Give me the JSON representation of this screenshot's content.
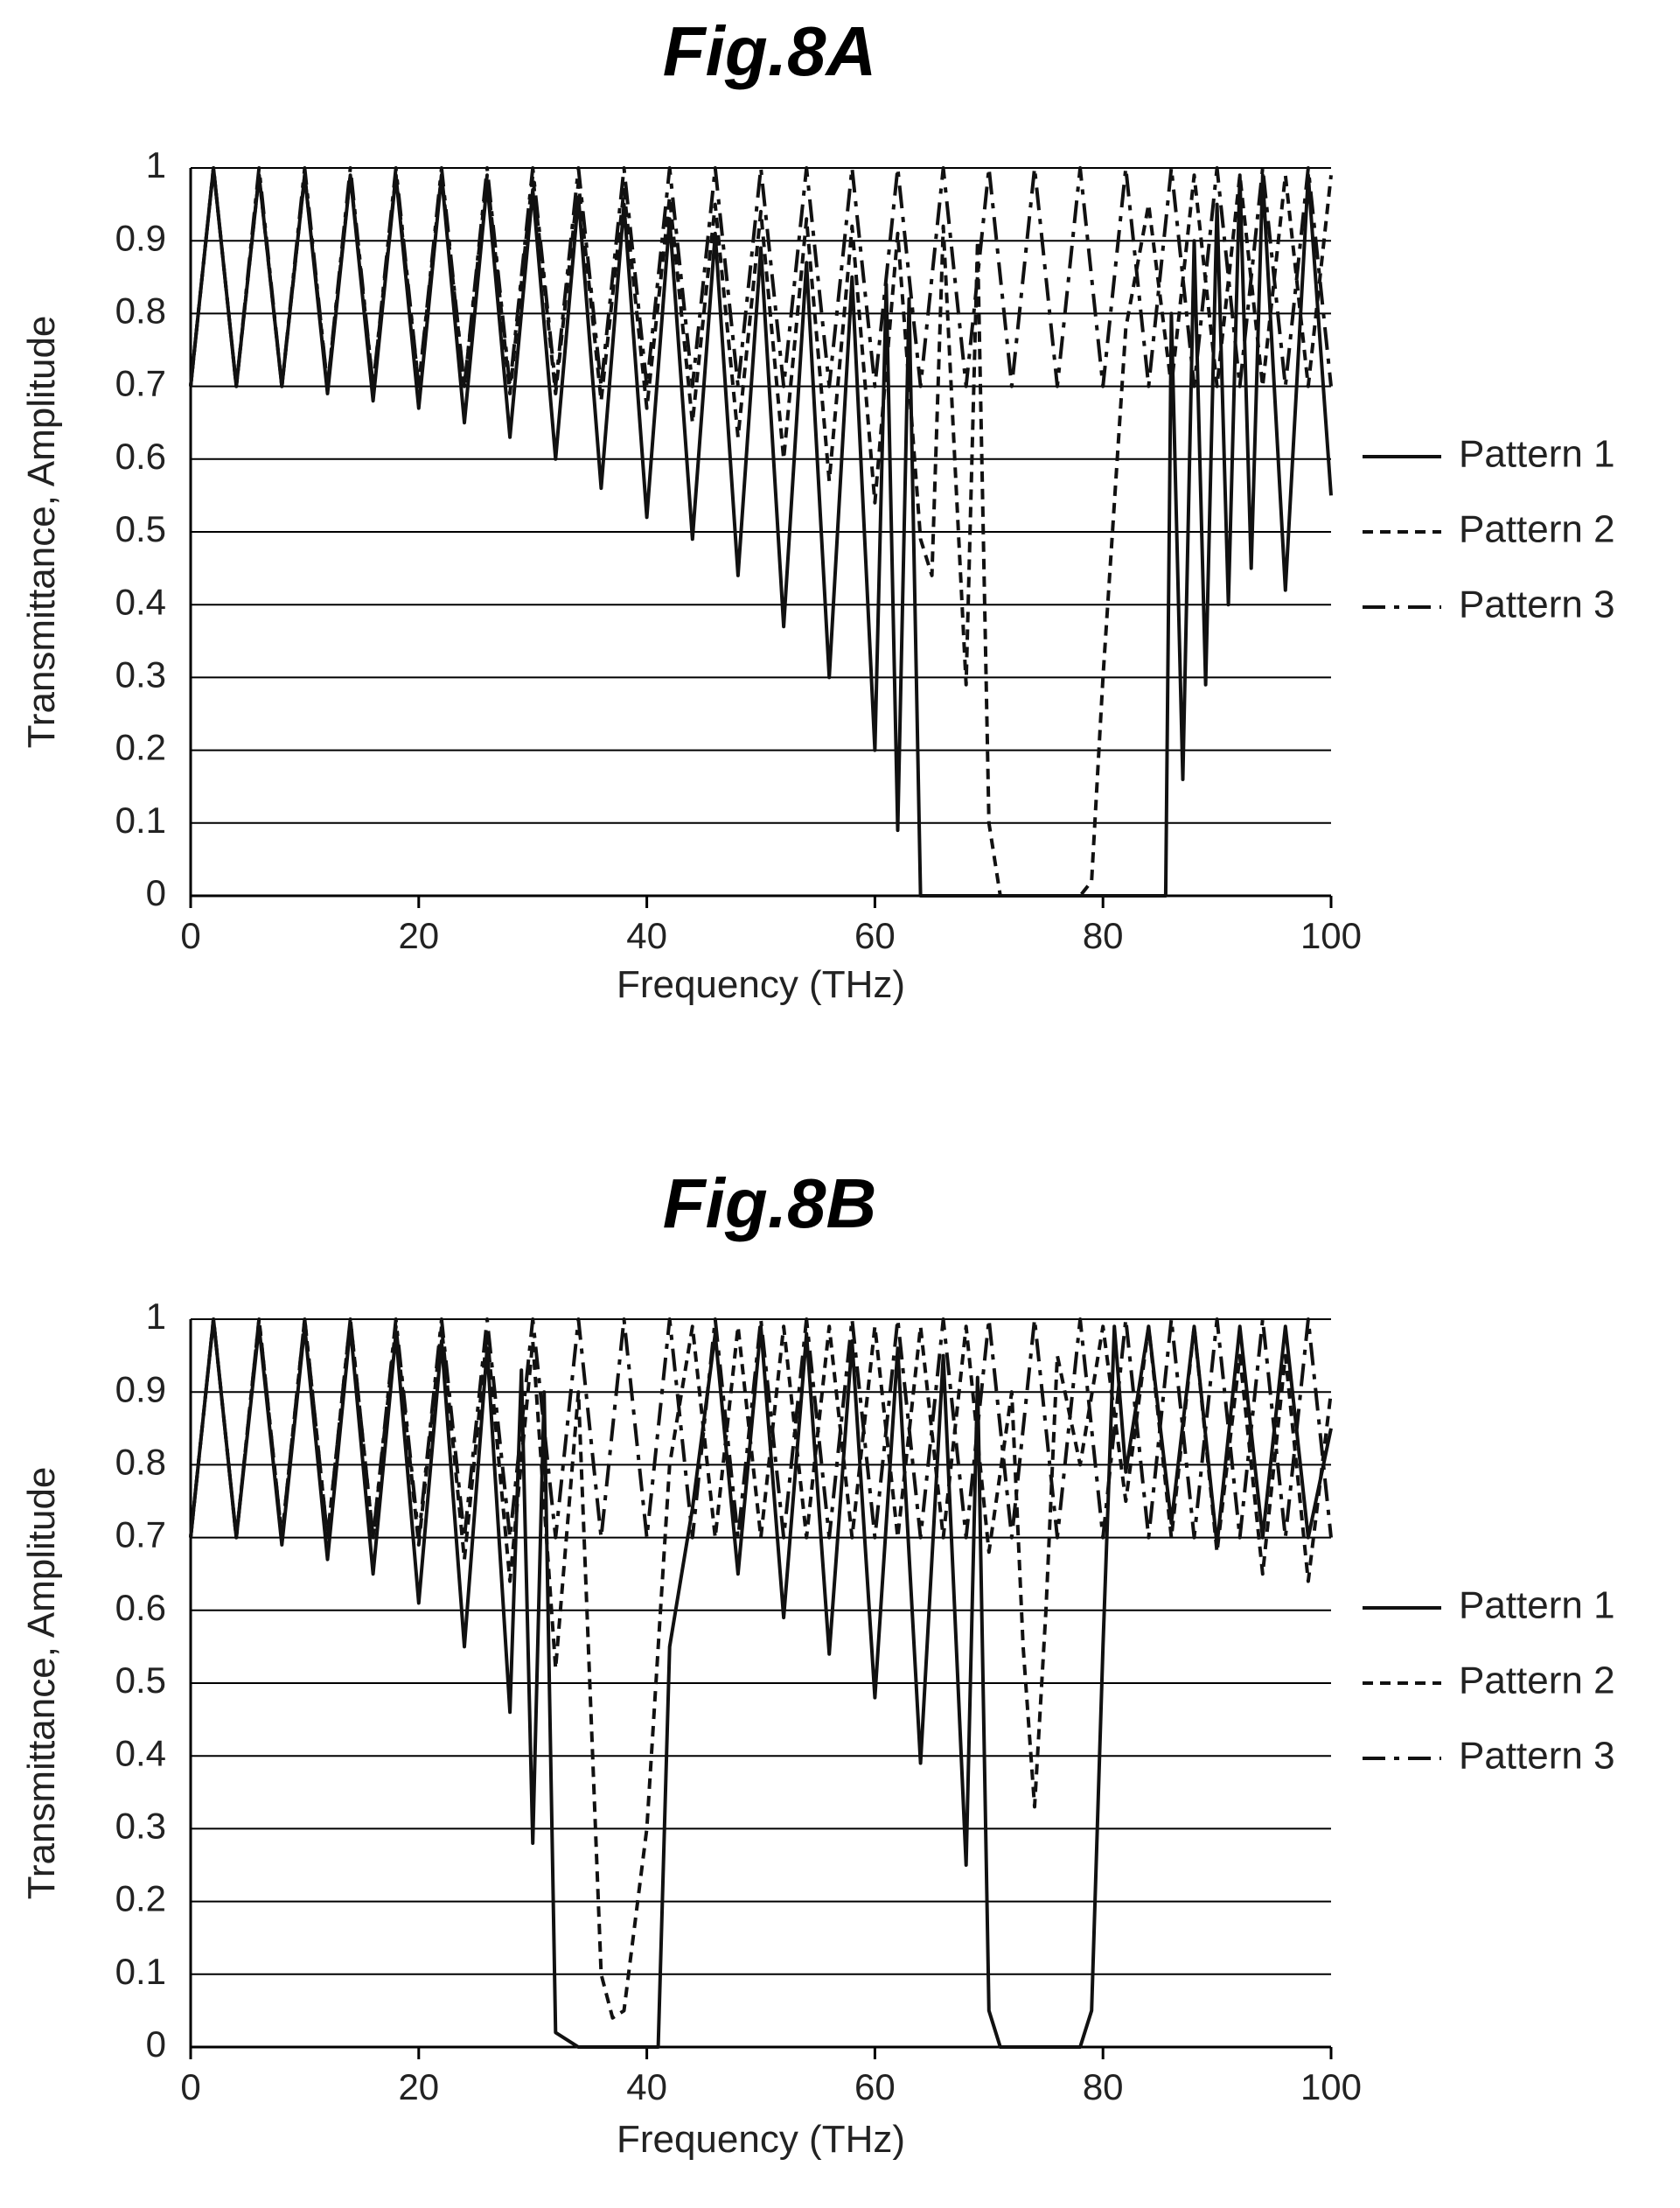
{
  "chart_data": [
    {
      "type": "line",
      "title": "Fig.8A",
      "xlabel": "Frequency (THz)",
      "ylabel": "Transmittance, Amplitude",
      "xlim": [
        0,
        100
      ],
      "ylim": [
        0,
        1
      ],
      "xticks": [
        "0",
        "20",
        "40",
        "60",
        "80",
        "100"
      ],
      "yticks": [
        "0",
        "0.1",
        "0.2",
        "0.3",
        "0.4",
        "0.5",
        "0.6",
        "0.7",
        "0.8",
        "0.9",
        "1"
      ],
      "grid": "horizontal",
      "legend": "right",
      "series": [
        {
          "name": "Pattern 1",
          "dash": "solid",
          "x": [
            0,
            2,
            4,
            6,
            8,
            10,
            12,
            14,
            16,
            18,
            20,
            22,
            24,
            26,
            28,
            30,
            32,
            34,
            36,
            38,
            40,
            42,
            44,
            46,
            48,
            50,
            52,
            54,
            56,
            58,
            60,
            61,
            62,
            63,
            64,
            66,
            70,
            75,
            80,
            84,
            85.5,
            86,
            87,
            88,
            89,
            90,
            91,
            92,
            93,
            94,
            96,
            98,
            100
          ],
          "y": [
            0.7,
            1.0,
            0.7,
            0.99,
            0.7,
            0.99,
            0.69,
            0.99,
            0.68,
            0.99,
            0.67,
            0.99,
            0.65,
            0.98,
            0.63,
            0.97,
            0.6,
            0.96,
            0.56,
            0.95,
            0.52,
            0.93,
            0.49,
            0.91,
            0.44,
            0.89,
            0.37,
            0.87,
            0.3,
            0.85,
            0.2,
            0.84,
            0.09,
            0.82,
            0.0,
            0.0,
            0.0,
            0.0,
            0.0,
            0.0,
            0.0,
            0.8,
            0.16,
            0.9,
            0.29,
            0.95,
            0.4,
            0.99,
            0.45,
            0.99,
            0.42,
            0.99,
            0.55
          ]
        },
        {
          "name": "Pattern 2",
          "dash": "dashed",
          "x": [
            0,
            2,
            4,
            6,
            8,
            10,
            12,
            14,
            16,
            18,
            20,
            22,
            24,
            26,
            28,
            30,
            32,
            34,
            36,
            38,
            40,
            42,
            44,
            46,
            48,
            50,
            52,
            54,
            56,
            58,
            60,
            62,
            64,
            65,
            66,
            67,
            68,
            69,
            70,
            71,
            72,
            76,
            78,
            79,
            80,
            82,
            84,
            86,
            88,
            90,
            92,
            94,
            96,
            98,
            100
          ],
          "y": [
            0.7,
            1.0,
            0.7,
            0.99,
            0.7,
            0.99,
            0.7,
            0.99,
            0.7,
            0.99,
            0.7,
            0.99,
            0.7,
            0.99,
            0.69,
            0.99,
            0.69,
            0.98,
            0.68,
            0.97,
            0.67,
            0.96,
            0.65,
            0.95,
            0.63,
            0.94,
            0.6,
            0.93,
            0.57,
            0.92,
            0.54,
            0.91,
            0.49,
            0.44,
            0.92,
            0.6,
            0.29,
            0.9,
            0.1,
            0.0,
            0.0,
            0.0,
            0.0,
            0.02,
            0.3,
            0.78,
            0.95,
            0.7,
            0.99,
            0.7,
            0.99,
            0.7,
            0.99,
            0.7,
            0.99
          ]
        },
        {
          "name": "Pattern 3",
          "dash": "dashdot",
          "x": [
            0,
            2,
            4,
            6,
            8,
            10,
            12,
            14,
            16,
            18,
            20,
            22,
            24,
            26,
            28,
            30,
            32,
            34,
            36,
            38,
            40,
            42,
            44,
            46,
            48,
            50,
            52,
            54,
            56,
            58,
            60,
            62,
            64,
            66,
            68,
            70,
            72,
            74,
            76,
            78,
            80,
            82,
            84,
            86,
            88,
            90,
            92,
            94,
            96,
            98,
            100
          ],
          "y": [
            0.7,
            1.0,
            0.7,
            1.0,
            0.7,
            1.0,
            0.7,
            1.0,
            0.7,
            1.0,
            0.7,
            1.0,
            0.7,
            1.0,
            0.7,
            1.0,
            0.7,
            1.0,
            0.7,
            1.0,
            0.7,
            1.0,
            0.7,
            1.0,
            0.7,
            1.0,
            0.7,
            1.0,
            0.7,
            1.0,
            0.7,
            1.0,
            0.7,
            1.0,
            0.7,
            1.0,
            0.7,
            1.0,
            0.7,
            1.0,
            0.7,
            1.0,
            0.7,
            1.0,
            0.7,
            1.0,
            0.7,
            1.0,
            0.7,
            1.0,
            0.7
          ]
        }
      ]
    },
    {
      "type": "line",
      "title": "Fig.8B",
      "xlabel": "Frequency (THz)",
      "ylabel": "Transmittance, Amplitude",
      "xlim": [
        0,
        100
      ],
      "ylim": [
        0,
        1
      ],
      "xticks": [
        "0",
        "20",
        "40",
        "60",
        "80",
        "100"
      ],
      "yticks": [
        "0",
        "0.1",
        "0.2",
        "0.3",
        "0.4",
        "0.5",
        "0.6",
        "0.7",
        "0.8",
        "0.9",
        "1"
      ],
      "grid": "horizontal",
      "legend": "right",
      "series": [
        {
          "name": "Pattern 1",
          "dash": "solid",
          "x": [
            0,
            2,
            4,
            6,
            8,
            10,
            12,
            14,
            16,
            18,
            20,
            22,
            24,
            26,
            28,
            29,
            30,
            31,
            32,
            34,
            38,
            41,
            42,
            44,
            46,
            48,
            50,
            52,
            54,
            56,
            58,
            60,
            62,
            64,
            66,
            68,
            69,
            70,
            71,
            72,
            76,
            78,
            79,
            80,
            81,
            82,
            84,
            86,
            88,
            90,
            92,
            94,
            96,
            98,
            100
          ],
          "y": [
            0.7,
            1.0,
            0.7,
            0.99,
            0.69,
            0.99,
            0.67,
            0.99,
            0.65,
            0.98,
            0.61,
            0.97,
            0.55,
            0.96,
            0.46,
            0.93,
            0.28,
            0.9,
            0.02,
            0.0,
            0.0,
            0.0,
            0.55,
            0.74,
            0.98,
            0.65,
            0.99,
            0.59,
            0.98,
            0.54,
            0.97,
            0.48,
            0.96,
            0.39,
            0.95,
            0.25,
            0.92,
            0.05,
            0.0,
            0.0,
            0.0,
            0.0,
            0.05,
            0.55,
            0.99,
            0.79,
            0.99,
            0.72,
            0.99,
            0.69,
            0.99,
            0.7,
            0.99,
            0.7,
            0.85
          ]
        },
        {
          "name": "Pattern 2",
          "dash": "dashed",
          "x": [
            0,
            2,
            4,
            6,
            8,
            10,
            12,
            14,
            16,
            18,
            20,
            22,
            24,
            26,
            28,
            30,
            32,
            34,
            36,
            37,
            38,
            40,
            42,
            44,
            46,
            48,
            50,
            52,
            54,
            56,
            58,
            60,
            62,
            64,
            66,
            68,
            70,
            72,
            73,
            74,
            75,
            76,
            78,
            80,
            82,
            84,
            86,
            88,
            90,
            92,
            94,
            96,
            98,
            100
          ],
          "y": [
            0.7,
            1.0,
            0.7,
            1.0,
            0.7,
            1.0,
            0.7,
            1.0,
            0.7,
            0.99,
            0.69,
            0.99,
            0.67,
            0.98,
            0.64,
            0.97,
            0.52,
            0.9,
            0.1,
            0.04,
            0.05,
            0.3,
            0.8,
            0.99,
            0.7,
            0.99,
            0.7,
            0.99,
            0.7,
            0.99,
            0.7,
            0.99,
            0.7,
            0.99,
            0.7,
            0.99,
            0.68,
            0.9,
            0.55,
            0.33,
            0.6,
            0.95,
            0.8,
            0.99,
            0.75,
            0.99,
            0.7,
            0.99,
            0.68,
            0.95,
            0.65,
            0.95,
            0.64,
            0.9
          ]
        },
        {
          "name": "Pattern 3",
          "dash": "dashdot",
          "x": [
            0,
            2,
            4,
            6,
            8,
            10,
            12,
            14,
            16,
            18,
            20,
            22,
            24,
            26,
            28,
            30,
            32,
            34,
            36,
            38,
            40,
            42,
            44,
            46,
            48,
            50,
            52,
            54,
            56,
            58,
            60,
            62,
            64,
            66,
            68,
            70,
            72,
            74,
            76,
            78,
            80,
            82,
            84,
            86,
            88,
            90,
            92,
            94,
            96,
            98,
            100
          ],
          "y": [
            0.7,
            1.0,
            0.7,
            1.0,
            0.7,
            1.0,
            0.7,
            1.0,
            0.7,
            1.0,
            0.7,
            1.0,
            0.7,
            1.0,
            0.7,
            1.0,
            0.7,
            1.0,
            0.7,
            1.0,
            0.7,
            1.0,
            0.7,
            1.0,
            0.7,
            1.0,
            0.7,
            1.0,
            0.7,
            1.0,
            0.7,
            1.0,
            0.7,
            1.0,
            0.7,
            1.0,
            0.7,
            1.0,
            0.7,
            1.0,
            0.7,
            1.0,
            0.7,
            1.0,
            0.7,
            1.0,
            0.7,
            1.0,
            0.7,
            1.0,
            0.7
          ]
        }
      ]
    }
  ]
}
